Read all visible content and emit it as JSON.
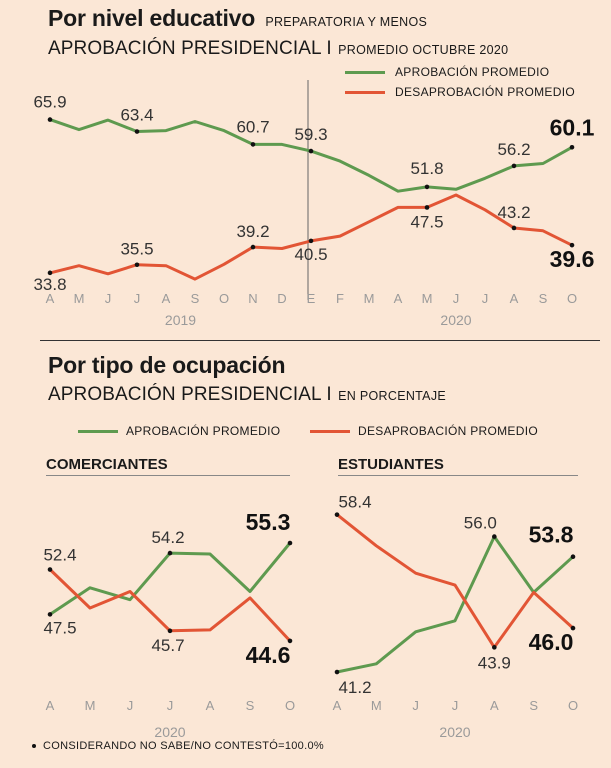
{
  "section1": {
    "title": "Por nivel educativo",
    "title_note": "PREPARATORIA Y MENOS",
    "subtitle": "APROBACIÓN PRESIDENCIAL I",
    "subtitle_note": "PROMEDIO OCTUBRE 2020"
  },
  "section2": {
    "title": "Por tipo de ocupación",
    "subtitle": "APROBACIÓN PRESIDENCIAL I",
    "subtitle_note": "EN PORCENTAJE"
  },
  "legend": {
    "approval": "APROBACIÓN PROMEDIO",
    "disapproval": "DESAPROBACIÓN PROMEDIO"
  },
  "colors": {
    "approval": "#5e9a4f",
    "disapproval": "#e25535",
    "background": "#fbe7d6"
  },
  "footnote": "CONSIDERANDO NO SABE/NO CONTESTÓ=100.0%",
  "chart_data": [
    {
      "type": "line",
      "name": "Por nivel educativo",
      "categories": [
        "A",
        "M",
        "J",
        "J",
        "A",
        "S",
        "O",
        "N",
        "D",
        "E",
        "F",
        "M",
        "A",
        "M",
        "J",
        "J",
        "A",
        "S",
        "O"
      ],
      "years": [
        "2019",
        "2020"
      ],
      "series": [
        {
          "name": "APROBACIÓN PROMEDIO",
          "values": [
            65.9,
            63.8,
            65.8,
            63.4,
            63.6,
            65.5,
            63.6,
            60.7,
            60.7,
            59.3,
            57.2,
            54.2,
            50.9,
            51.8,
            51.3,
            53.6,
            56.2,
            56.7,
            60.1
          ],
          "labels": [
            {
              "index": 0,
              "text": "65.9"
            },
            {
              "index": 3,
              "text": "63.4"
            },
            {
              "index": 7,
              "text": "60.7"
            },
            {
              "index": 9,
              "text": "59.3"
            },
            {
              "index": 13,
              "text": "51.8"
            },
            {
              "index": 16,
              "text": "56.2"
            },
            {
              "index": 18,
              "text": "60.1",
              "bold": true
            }
          ]
        },
        {
          "name": "DESAPROBACIÓN PROMEDIO",
          "values": [
            33.8,
            35.3,
            33.6,
            35.5,
            35.3,
            32.5,
            35.6,
            39.2,
            38.9,
            40.5,
            41.5,
            44.5,
            47.5,
            47.5,
            50.1,
            47.0,
            43.2,
            42.6,
            39.6
          ],
          "labels": [
            {
              "index": 0,
              "text": "33.8"
            },
            {
              "index": 3,
              "text": "35.5"
            },
            {
              "index": 7,
              "text": "39.2"
            },
            {
              "index": 9,
              "text": "40.5"
            },
            {
              "index": 13,
              "text": "47.5"
            },
            {
              "index": 16,
              "text": "43.2"
            },
            {
              "index": 18,
              "text": "39.6",
              "bold": true
            }
          ]
        }
      ],
      "ylim": [
        30,
        70
      ]
    },
    {
      "type": "line",
      "name": "COMERCIANTES",
      "categories": [
        "A",
        "M",
        "J",
        "J",
        "A",
        "S",
        "O"
      ],
      "year": "2020",
      "series": [
        {
          "name": "APROBACIÓN PROMEDIO",
          "values": [
            47.5,
            50.4,
            49.1,
            54.2,
            54.1,
            50.0,
            55.3
          ],
          "labels": [
            {
              "index": 0,
              "text": "47.5"
            },
            {
              "index": 3,
              "text": "54.2"
            },
            {
              "index": 6,
              "text": "55.3",
              "bold": true
            }
          ]
        },
        {
          "name": "DESAPROBACIÓN PROMEDIO",
          "values": [
            52.4,
            48.2,
            50.0,
            45.7,
            45.8,
            49.3,
            44.6
          ],
          "labels": [
            {
              "index": 0,
              "text": "52.4"
            },
            {
              "index": 3,
              "text": "45.7"
            },
            {
              "index": 6,
              "text": "44.6",
              "bold": true
            }
          ]
        }
      ],
      "ylim": [
        40,
        60
      ]
    },
    {
      "type": "line",
      "name": "ESTUDIANTES",
      "categories": [
        "A",
        "M",
        "J",
        "J",
        "A",
        "S",
        "O"
      ],
      "year": "2020",
      "series": [
        {
          "name": "APROBACIÓN PROMEDIO",
          "values": [
            41.2,
            42.1,
            45.6,
            46.8,
            56.0,
            49.9,
            53.8
          ],
          "labels": [
            {
              "index": 0,
              "text": "41.2"
            },
            {
              "index": 4,
              "text": "56.0"
            },
            {
              "index": 6,
              "text": "53.8",
              "bold": true
            }
          ]
        },
        {
          "name": "DESAPROBACIÓN PROMEDIO",
          "values": [
            58.4,
            55.0,
            52.0,
            50.7,
            43.9,
            49.9,
            46.0
          ],
          "labels": [
            {
              "index": 0,
              "text": "58.4"
            },
            {
              "index": 4,
              "text": "43.9"
            },
            {
              "index": 6,
              "text": "46.0",
              "bold": true
            }
          ]
        }
      ],
      "ylim": [
        40,
        60
      ]
    }
  ]
}
